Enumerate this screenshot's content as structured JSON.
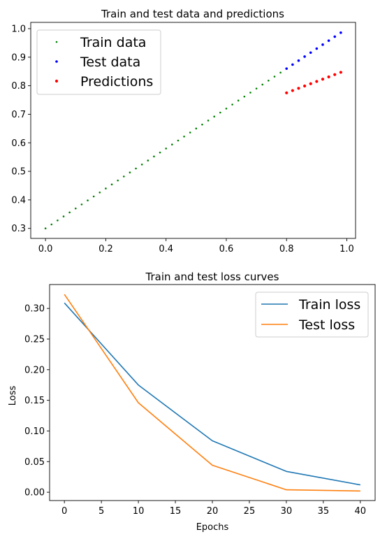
{
  "chart_data": [
    {
      "type": "scatter",
      "title": "Train and test data and predictions",
      "xlabel": "",
      "ylabel": "",
      "xlim": [
        -0.049,
        1.029
      ],
      "ylim": [
        0.265,
        1.022
      ],
      "xticks": [
        0.0,
        0.2,
        0.4,
        0.6,
        0.8,
        1.0
      ],
      "xtick_labels": [
        "0.0",
        "0.2",
        "0.4",
        "0.6",
        "0.8",
        "1.0"
      ],
      "yticks": [
        0.3,
        0.4,
        0.5,
        0.6,
        0.7,
        0.8,
        0.9,
        1.0
      ],
      "ytick_labels": [
        "0.3",
        "0.4",
        "0.5",
        "0.6",
        "0.7",
        "0.8",
        "0.9",
        "1.0"
      ],
      "grid": false,
      "legend_position": "top-left",
      "series": [
        {
          "name": "Train data",
          "color": "#008000",
          "x": [
            0.0,
            0.02,
            0.04,
            0.06,
            0.08,
            0.1,
            0.12,
            0.14,
            0.16,
            0.18,
            0.2,
            0.22,
            0.24,
            0.26,
            0.28,
            0.3,
            0.32,
            0.34,
            0.36,
            0.38,
            0.4,
            0.42,
            0.44,
            0.46,
            0.48,
            0.5,
            0.52,
            0.54,
            0.56,
            0.58,
            0.6,
            0.62,
            0.64,
            0.66,
            0.68,
            0.7,
            0.72,
            0.74,
            0.76,
            0.78
          ],
          "y": [
            0.3,
            0.314,
            0.328,
            0.342,
            0.356,
            0.37,
            0.384,
            0.398,
            0.412,
            0.426,
            0.44,
            0.454,
            0.468,
            0.482,
            0.496,
            0.51,
            0.524,
            0.538,
            0.552,
            0.566,
            0.58,
            0.594,
            0.608,
            0.622,
            0.636,
            0.65,
            0.664,
            0.678,
            0.692,
            0.706,
            0.72,
            0.734,
            0.748,
            0.762,
            0.776,
            0.79,
            0.804,
            0.818,
            0.832,
            0.846
          ]
        },
        {
          "name": "Test data",
          "color": "#0000ff",
          "x": [
            0.8,
            0.82,
            0.84,
            0.86,
            0.88,
            0.9,
            0.92,
            0.94,
            0.96,
            0.98
          ],
          "y": [
            0.86,
            0.874,
            0.888,
            0.902,
            0.916,
            0.93,
            0.944,
            0.958,
            0.972,
            0.986
          ]
        },
        {
          "name": "Predictions",
          "color": "#ff0000",
          "x": [
            0.8,
            0.82,
            0.84,
            0.86,
            0.88,
            0.9,
            0.92,
            0.94,
            0.96,
            0.98
          ],
          "y": [
            0.775,
            0.783,
            0.791,
            0.799,
            0.807,
            0.815,
            0.823,
            0.831,
            0.839,
            0.847
          ]
        }
      ]
    },
    {
      "type": "line",
      "title": "Train and test loss curves",
      "xlabel": "Epochs",
      "ylabel": "Loss",
      "xlim": [
        -2.0,
        42.0
      ],
      "ylim": [
        -0.0136,
        0.339
      ],
      "xticks": [
        0,
        5,
        10,
        15,
        20,
        25,
        30,
        35,
        40
      ],
      "xtick_labels": [
        "0",
        "5",
        "10",
        "15",
        "20",
        "25",
        "30",
        "35",
        "40"
      ],
      "yticks": [
        0.0,
        0.05,
        0.1,
        0.15,
        0.2,
        0.25,
        0.3
      ],
      "ytick_labels": [
        "0.00",
        "0.05",
        "0.10",
        "0.15",
        "0.20",
        "0.25",
        "0.30"
      ],
      "grid": false,
      "legend_position": "top-right",
      "x": [
        0,
        10,
        20,
        30,
        40
      ],
      "series": [
        {
          "name": "Train loss",
          "color": "#1f77b4",
          "values": [
            0.309,
            0.175,
            0.084,
            0.034,
            0.012
          ]
        },
        {
          "name": "Test loss",
          "color": "#ff7f0e",
          "values": [
            0.323,
            0.146,
            0.044,
            0.004,
            0.002
          ]
        }
      ]
    }
  ]
}
